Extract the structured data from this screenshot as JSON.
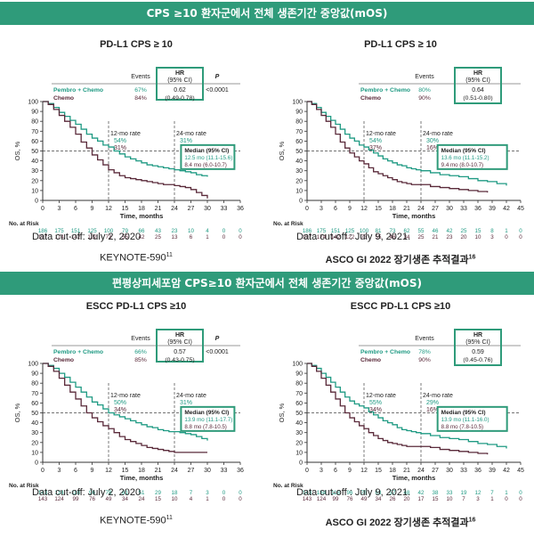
{
  "bands": {
    "top": "CPS ≥10 환자군에서 전체 생존기간 중앙값(mOS)",
    "bottom": "편평상피세포암 CPS≥10 환자군에서 전체 생존기간 중앙값(mOS)"
  },
  "colors": {
    "band": "#2f9b7a",
    "pembro": "#1f9a83",
    "chemo": "#5a2a3a",
    "box": "#2f9b7a"
  },
  "chart_data": [
    {
      "type": "line",
      "title": "PD-L1 CPS ≥ 10",
      "xlabel": "Time, months",
      "ylabel": "OS, %",
      "xticks": [
        "0",
        "3",
        "6",
        "9",
        "12",
        "15",
        "18",
        "21",
        "24",
        "27",
        "30",
        "33",
        "36"
      ],
      "yticks": [
        "0",
        "10",
        "20",
        "30",
        "40",
        "50",
        "60",
        "70",
        "80",
        "90",
        "100"
      ],
      "xlim": [
        0,
        36
      ],
      "ylim": [
        0,
        100
      ],
      "table": {
        "hdr_events": "Events",
        "hdr_hr": "HR",
        "hdr_ci": "(95% CI)",
        "hdr_p": "P",
        "rows": [
          {
            "label": "Pembro + Chemo",
            "events": "67%",
            "hr": "0.62",
            "ci": "(0.49-0.78)",
            "p": "<0.0001"
          },
          {
            "label": "Chemo",
            "events": "84%",
            "hr": "",
            "ci": "",
            "p": ""
          }
        ]
      },
      "rate12": {
        "title": "12-mo rate",
        "a": "54%",
        "b": "31%"
      },
      "rate24": {
        "title": "24-mo rate",
        "a": "31%",
        "b": "15%"
      },
      "median": {
        "title": "Median (95% CI)",
        "a": "12.5 mo (11.1-15.6)",
        "b": "8.4 mo (6.0-10.7)"
      },
      "risk": {
        "title": "No. at Risk",
        "a": [
          "186",
          "175",
          "151",
          "125",
          "100",
          "79",
          "66",
          "43",
          "23",
          "10",
          "4",
          "0",
          "0"
        ],
        "b": [
          "197",
          "174",
          "142",
          "122",
          "73",
          "55",
          "42",
          "25",
          "13",
          "6",
          "1",
          "0",
          "0"
        ]
      },
      "cutoff": "Data cut-off: July 2, 2020",
      "source": "KEYNOTE-590",
      "source_sup": "11",
      "series": [
        {
          "name": "Pembro + Chemo",
          "x": [
            0,
            1,
            2,
            3,
            4,
            5,
            6,
            7,
            8,
            9,
            10,
            11,
            12,
            13,
            14,
            15,
            16,
            17,
            18,
            19,
            20,
            21,
            22,
            23,
            24,
            25,
            26,
            27,
            28,
            29,
            30
          ],
          "y": [
            100,
            98,
            94,
            89,
            85,
            81,
            77,
            72,
            67,
            63,
            60,
            56,
            54,
            50,
            47,
            44,
            42,
            40,
            38,
            36,
            35,
            34,
            33,
            32,
            31,
            30,
            29,
            28,
            26,
            25,
            24
          ]
        },
        {
          "name": "Chemo",
          "x": [
            0,
            1,
            2,
            3,
            4,
            5,
            6,
            7,
            8,
            9,
            10,
            11,
            12,
            13,
            14,
            15,
            16,
            17,
            18,
            19,
            20,
            21,
            22,
            23,
            24,
            25,
            26,
            27,
            28,
            29,
            30
          ],
          "y": [
            100,
            97,
            92,
            86,
            80,
            74,
            67,
            59,
            53,
            46,
            41,
            36,
            31,
            28,
            25,
            23,
            22,
            21,
            20,
            19,
            18,
            17,
            16,
            16,
            15,
            14,
            13,
            11,
            8,
            5,
            2
          ]
        }
      ]
    },
    {
      "type": "line",
      "title": "PD-L1 CPS ≥ 10",
      "xlabel": "Time, months",
      "ylabel": "OS, %",
      "xticks": [
        "0",
        "3",
        "6",
        "9",
        "12",
        "15",
        "18",
        "21",
        "24",
        "27",
        "30",
        "33",
        "36",
        "39",
        "42",
        "45"
      ],
      "yticks": [
        "0",
        "10",
        "20",
        "30",
        "40",
        "50",
        "60",
        "70",
        "80",
        "90",
        "100"
      ],
      "xlim": [
        0,
        45
      ],
      "ylim": [
        0,
        100
      ],
      "table": {
        "hdr_events": "Events",
        "hdr_hr": "HR",
        "hdr_ci": "(95% CI)",
        "hdr_p": "",
        "rows": [
          {
            "label": "Pembro + Chemo",
            "events": "80%",
            "hr": "0.64",
            "ci": "(0.51-0.80)",
            "p": ""
          },
          {
            "label": "Chemo",
            "events": "90%",
            "hr": "",
            "ci": "",
            "p": ""
          }
        ]
      },
      "rate12": {
        "title": "12-mo rate",
        "a": "54%",
        "b": "37%"
      },
      "rate24": {
        "title": "24-mo rate",
        "a": "30%",
        "b": "16%"
      },
      "median": {
        "title": "Median (95% CI)",
        "a": "13.6 mo (11.1-15.2)",
        "b": "9.4 mo (8.0-10.7)"
      },
      "risk": {
        "title": "No. at Risk",
        "a": [
          "186",
          "175",
          "151",
          "125",
          "100",
          "81",
          "73",
          "62",
          "55",
          "46",
          "42",
          "25",
          "15",
          "8",
          "1",
          "0"
        ],
        "b": [
          "197",
          "174",
          "142",
          "122",
          "73",
          "55",
          "46",
          "34",
          "25",
          "21",
          "23",
          "20",
          "10",
          "3",
          "0",
          "0"
        ]
      },
      "cutoff": "Data cut-off : July 9, 2021.",
      "source": "ASCO GI 2022  장기생존 추적결과",
      "source_sup": "16",
      "series": [
        {
          "name": "Pembro + Chemo",
          "x": [
            0,
            1,
            2,
            3,
            4,
            5,
            6,
            7,
            8,
            9,
            10,
            11,
            12,
            13,
            14,
            15,
            16,
            17,
            18,
            19,
            20,
            21,
            22,
            23,
            24,
            26,
            28,
            30,
            32,
            34,
            36,
            38,
            40,
            42
          ],
          "y": [
            100,
            98,
            94,
            89,
            85,
            81,
            77,
            72,
            67,
            63,
            60,
            56,
            54,
            51,
            48,
            45,
            42,
            40,
            38,
            36,
            35,
            33,
            32,
            31,
            30,
            28,
            26,
            25,
            24,
            22,
            20,
            19,
            17,
            15
          ]
        },
        {
          "name": "Chemo",
          "x": [
            0,
            1,
            2,
            3,
            4,
            5,
            6,
            7,
            8,
            9,
            10,
            11,
            12,
            13,
            14,
            15,
            16,
            17,
            18,
            19,
            20,
            21,
            22,
            23,
            24,
            26,
            28,
            30,
            32,
            34,
            36,
            38
          ],
          "y": [
            100,
            97,
            92,
            86,
            80,
            74,
            67,
            59,
            53,
            48,
            44,
            40,
            37,
            33,
            29,
            27,
            25,
            23,
            21,
            19,
            18,
            17,
            16,
            16,
            16,
            14,
            13,
            12,
            11,
            10,
            9,
            8
          ]
        }
      ]
    },
    {
      "type": "line",
      "title": "ESCC PD-L1 CPS ≥10",
      "xlabel": "Time, months",
      "ylabel": "OS, %",
      "xticks": [
        "0",
        "3",
        "6",
        "9",
        "12",
        "15",
        "18",
        "21",
        "24",
        "27",
        "30",
        "33",
        "36"
      ],
      "yticks": [
        "0",
        "10",
        "20",
        "30",
        "40",
        "50",
        "60",
        "70",
        "80",
        "90",
        "100"
      ],
      "xlim": [
        0,
        36
      ],
      "ylim": [
        0,
        100
      ],
      "table": {
        "hdr_events": "Events",
        "hdr_hr": "HR",
        "hdr_ci": "(95% CI)",
        "hdr_p": "P",
        "rows": [
          {
            "label": "Pembro + Chemo",
            "events": "66%",
            "hr": "0.57",
            "ci": "(0.43-0.75)",
            "p": "<0.0001"
          },
          {
            "label": "Chemo",
            "events": "85%",
            "hr": "",
            "ci": "",
            "p": ""
          }
        ]
      },
      "rate12": {
        "title": "12-mo rate",
        "a": "50%",
        "b": "34%"
      },
      "rate24": {
        "title": "24-mo rate",
        "a": "31%",
        "b": "10%"
      },
      "median": {
        "title": "Median (95% CI)",
        "a": "13.9 mo (11.1-17.7)",
        "b": "8.8 mo (7.8-10.5)"
      },
      "risk": {
        "title": "No. at Risk",
        "a": [
          "143",
          "134",
          "118",
          "96",
          "78",
          "61",
          "51",
          "29",
          "18",
          "7",
          "3",
          "0",
          "0"
        ],
        "b": [
          "143",
          "124",
          "99",
          "76",
          "49",
          "34",
          "24",
          "15",
          "10",
          "4",
          "1",
          "0",
          "0"
        ]
      },
      "cutoff": "Data cut-off: July 2, 2020",
      "source": "KEYNOTE-590",
      "source_sup": "11",
      "series": [
        {
          "name": "Pembro + Chemo",
          "x": [
            0,
            1,
            2,
            3,
            4,
            5,
            6,
            7,
            8,
            9,
            10,
            11,
            12,
            13,
            14,
            15,
            16,
            17,
            18,
            19,
            20,
            21,
            22,
            23,
            24,
            25,
            26,
            27,
            28,
            29,
            30
          ],
          "y": [
            100,
            98,
            95,
            90,
            86,
            81,
            76,
            71,
            66,
            61,
            58,
            54,
            50,
            48,
            46,
            44,
            42,
            40,
            38,
            36,
            35,
            33,
            32,
            31,
            31,
            30,
            29,
            28,
            26,
            24,
            22
          ]
        },
        {
          "name": "Chemo",
          "x": [
            0,
            1,
            2,
            3,
            4,
            5,
            6,
            7,
            8,
            9,
            10,
            11,
            12,
            13,
            14,
            15,
            16,
            17,
            18,
            19,
            20,
            21,
            22,
            23,
            24,
            25,
            26,
            27,
            28,
            29,
            30
          ],
          "y": [
            100,
            97,
            92,
            85,
            78,
            71,
            64,
            57,
            50,
            45,
            41,
            37,
            34,
            30,
            26,
            23,
            21,
            19,
            17,
            15,
            14,
            13,
            12,
            11,
            10,
            10,
            10,
            10,
            10,
            10,
            10
          ]
        }
      ]
    },
    {
      "type": "line",
      "title": "ESCC PD-L1 CPS ≥10",
      "xlabel": "Time, months",
      "ylabel": "OS, %",
      "xticks": [
        "0",
        "3",
        "6",
        "9",
        "12",
        "15",
        "18",
        "21",
        "24",
        "27",
        "30",
        "33",
        "36",
        "39",
        "42",
        "45"
      ],
      "yticks": [
        "0",
        "10",
        "20",
        "30",
        "40",
        "50",
        "60",
        "70",
        "80",
        "90",
        "100"
      ],
      "xlim": [
        0,
        45
      ],
      "ylim": [
        0,
        100
      ],
      "table": {
        "hdr_events": "Events",
        "hdr_hr": "HR",
        "hdr_ci": "(95% CI)",
        "hdr_p": "",
        "rows": [
          {
            "label": "Pembro + Chemo",
            "events": "78%",
            "hr": "0.59",
            "ci": "(0.45-0.76)",
            "p": ""
          },
          {
            "label": "Chemo",
            "events": "90%",
            "hr": "",
            "ci": "",
            "p": ""
          }
        ]
      },
      "rate12": {
        "title": "12-mo rate",
        "a": "55%",
        "b": "34%"
      },
      "rate24": {
        "title": "24-mo rate",
        "a": "29%",
        "b": "16%"
      },
      "median": {
        "title": "Median (95% CI)",
        "a": "13.9 mo (11.1-16.0)",
        "b": "8.8 mo (7.8-10.5)"
      },
      "risk": {
        "title": "No. at Risk",
        "a": [
          "143",
          "134",
          "118",
          "96",
          "76",
          "63",
          "57",
          "48",
          "42",
          "38",
          "33",
          "19",
          "12",
          "7",
          "1",
          "0"
        ],
        "b": [
          "143",
          "124",
          "99",
          "76",
          "49",
          "34",
          "26",
          "20",
          "17",
          "15",
          "10",
          "7",
          "3",
          "1",
          "0",
          "0"
        ]
      },
      "cutoff": "Data cut-off : July 9, 2021.",
      "source": "ASCO GI 2022  장기생존 추적결과",
      "source_sup": "16",
      "series": [
        {
          "name": "Pembro + Chemo",
          "x": [
            0,
            1,
            2,
            3,
            4,
            5,
            6,
            7,
            8,
            9,
            10,
            11,
            12,
            13,
            14,
            15,
            16,
            17,
            18,
            19,
            20,
            21,
            22,
            23,
            24,
            26,
            28,
            30,
            32,
            34,
            36,
            38,
            40,
            42
          ],
          "y": [
            100,
            98,
            95,
            90,
            86,
            81,
            76,
            71,
            66,
            62,
            59,
            57,
            55,
            51,
            48,
            45,
            42,
            40,
            38,
            35,
            33,
            32,
            31,
            30,
            29,
            27,
            25,
            24,
            23,
            21,
            19,
            18,
            16,
            14
          ]
        },
        {
          "name": "Chemo",
          "x": [
            0,
            1,
            2,
            3,
            4,
            5,
            6,
            7,
            8,
            9,
            10,
            11,
            12,
            13,
            14,
            15,
            16,
            17,
            18,
            19,
            20,
            21,
            22,
            23,
            24,
            26,
            28,
            30,
            32,
            34,
            36,
            38
          ],
          "y": [
            100,
            97,
            92,
            85,
            78,
            71,
            64,
            57,
            50,
            45,
            41,
            37,
            34,
            30,
            27,
            24,
            22,
            20,
            19,
            18,
            17,
            16,
            16,
            16,
            16,
            15,
            13,
            12,
            11,
            10,
            9,
            8
          ]
        }
      ]
    }
  ]
}
